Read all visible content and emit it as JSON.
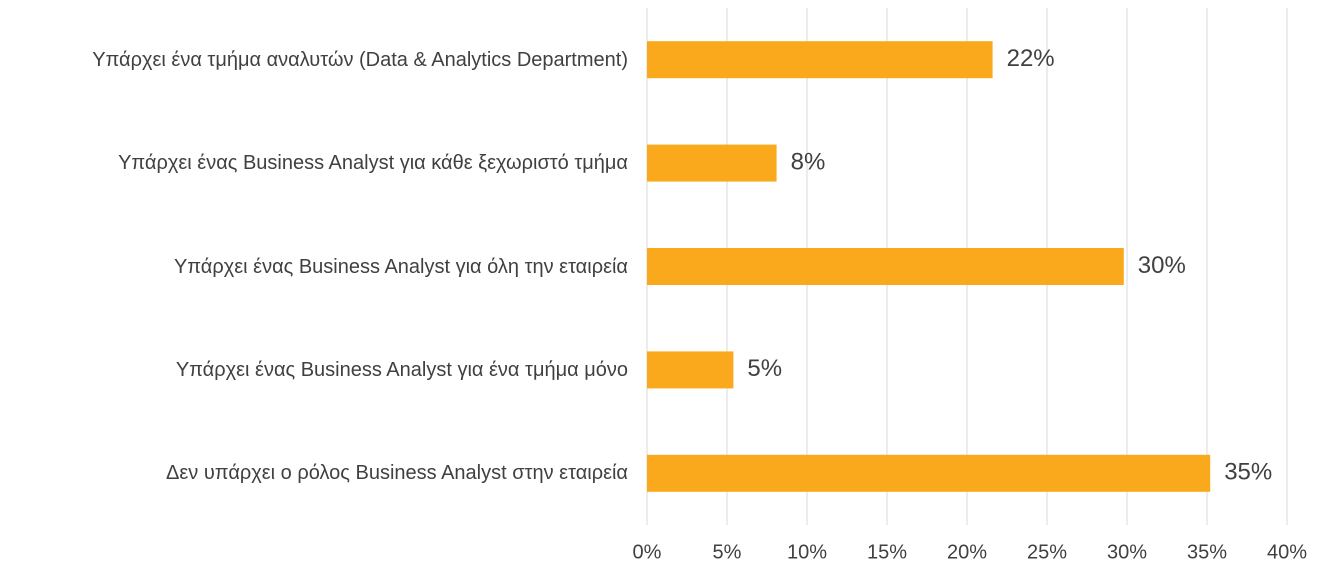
{
  "chart_data": {
    "type": "bar",
    "orientation": "horizontal",
    "categories": [
      "Υπάρχει ένα τμήμα αναλυτών (Data & Analytics Department)",
      "Υπάρχει ένας Business Analyst για κάθε ξεχωριστό τμήμα",
      "Υπάρχει ένας Business Analyst για όλη την εταιρεία",
      "Υπάρχει ένας Business Analyst για ένα τμήμα μόνο",
      "Δεν υπάρχει ο ρόλος Business Analyst στην εταιρεία"
    ],
    "values": [
      21.6,
      8.1,
      29.8,
      5.4,
      35.2
    ],
    "value_labels": [
      "22%",
      "8%",
      "30%",
      "5%",
      "35%"
    ],
    "color": "#f9a91b",
    "xlim": [
      0,
      40
    ],
    "xticks": [
      {
        "value": 0,
        "label": "0%"
      },
      {
        "value": 5,
        "label": "5%"
      },
      {
        "value": 10,
        "label": "10%"
      },
      {
        "value": 15,
        "label": "15%"
      },
      {
        "value": 20,
        "label": "20%"
      },
      {
        "value": 25,
        "label": "25%"
      },
      {
        "value": 30,
        "label": "30%"
      },
      {
        "value": 35,
        "label": "35%"
      },
      {
        "value": 40,
        "label": "40%"
      }
    ],
    "grid": true
  }
}
